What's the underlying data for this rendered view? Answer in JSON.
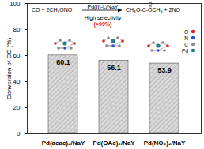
{
  "chart_data": {
    "type": "bar",
    "categories": [
      "Pd(acac)₂/NaY",
      "Pd(OAc)₂/NaY",
      "Pd(NO₃)₂/NaY"
    ],
    "values": [
      60.1,
      56.1,
      53.9
    ],
    "color": "#d9d9d9",
    "y_label": "Conversion of CO (%)",
    "ylim": [
      0,
      100
    ],
    "yticks": [
      0,
      20,
      40,
      60,
      80,
      100
    ],
    "data_labels": true,
    "annotations": [
      {
        "text": "CO + 2CH₃ONO",
        "color": "#000000"
      },
      {
        "text": "Pd(II)-L/NaY",
        "color": "#000000"
      },
      {
        "text": "High selectivity",
        "color": "#000000"
      },
      {
        "text": "(>99%)",
        "color": "#e0201b"
      },
      {
        "text": "O",
        "color": "#000000"
      },
      {
        "text": "CH₃O-C-OCH₃ + 2NO",
        "color": "#000000"
      }
    ],
    "atom_labels": [
      "O",
      "N",
      "C",
      "Pd"
    ]
  }
}
